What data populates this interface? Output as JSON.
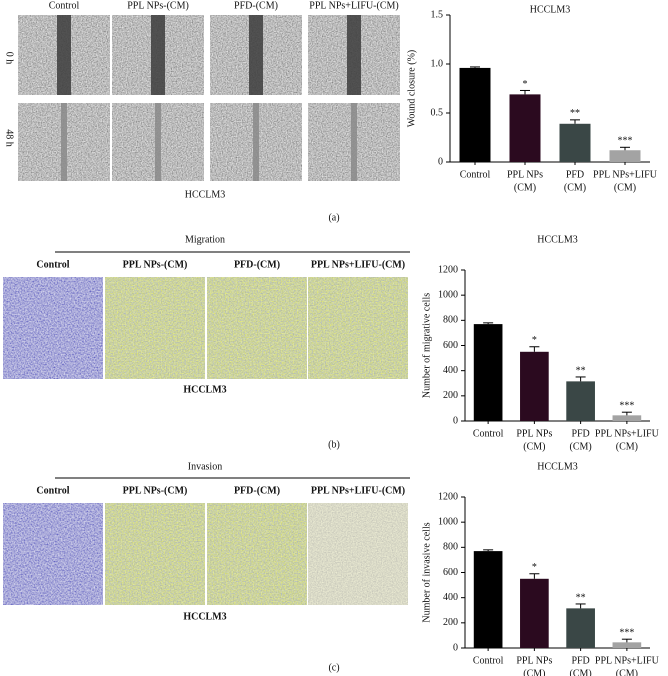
{
  "panel_a": {
    "columns": [
      "Control",
      "PPL NPs-(CM)",
      "PFD-(CM)",
      "PPL NPs+LIFU-(CM)"
    ],
    "rows": [
      "0 h",
      "48 h"
    ],
    "cell_line": "HCCLM3",
    "label": "(a)"
  },
  "panel_b": {
    "heading": "Migration",
    "columns": [
      "Control",
      "PPL NPs-(CM)",
      "PFD-(CM)",
      "PPL NPs+LIFU-(CM)"
    ],
    "cell_line": "HCCLM3",
    "label": "(b)"
  },
  "panel_c": {
    "heading": "Invasion",
    "columns": [
      "Control",
      "PPL NPs-(CM)",
      "PFD-(CM)",
      "PPL NPs+LIFU-(CM)"
    ],
    "cell_line": "HCCLM3",
    "label": "(c)"
  },
  "chart_data": [
    {
      "type": "bar",
      "title": "HCCLM3",
      "ylabel": "Wound closure (%)",
      "categories": [
        [
          "Control"
        ],
        [
          "PPL NPs",
          "(CM)"
        ],
        [
          "PFD",
          "(CM)"
        ],
        [
          "PPL NPs+LIFU",
          "(CM)"
        ]
      ],
      "values": [
        0.96,
        0.69,
        0.39,
        0.12
      ],
      "errors": [
        0.01,
        0.04,
        0.04,
        0.03
      ],
      "annotations": [
        null,
        "*",
        "**",
        "***"
      ],
      "colors": [
        "#000000",
        "#2b0a1f",
        "#3a4746",
        "#a3a3a3"
      ],
      "ylim": [
        0,
        1.5
      ],
      "yticks": [
        0,
        0.5,
        {
          "value": 1,
          "label": "1.0"
        },
        1.5
      ]
    },
    {
      "type": "bar",
      "title": "HCCLM3",
      "ylabel": "Number of migrative cells",
      "categories": [
        [
          "Control"
        ],
        [
          "PPL NPs",
          "(CM)"
        ],
        [
          "PFD",
          "(CM)"
        ],
        [
          "PPL NPs+LIFU",
          "(CM)"
        ]
      ],
      "values": [
        770,
        550,
        315,
        45
      ],
      "errors": [
        10,
        40,
        35,
        25
      ],
      "annotations": [
        null,
        "*",
        "**",
        "***"
      ],
      "colors": [
        "#000000",
        "#2b0a1f",
        "#3a4746",
        "#a3a3a3"
      ],
      "ylim": [
        0,
        1200
      ],
      "yticks": [
        0,
        200,
        400,
        600,
        800,
        1000,
        1200
      ]
    },
    {
      "type": "bar",
      "title": "HCCLM3",
      "ylabel": "Number of invasive cells",
      "categories": [
        [
          "Control"
        ],
        [
          "PPL NPs",
          "(CM)"
        ],
        [
          "PFD",
          "(CM)"
        ],
        [
          "PPL NPs+LIFU",
          "(CM)"
        ]
      ],
      "values": [
        770,
        550,
        315,
        45
      ],
      "errors": [
        10,
        40,
        35,
        25
      ],
      "annotations": [
        null,
        "*",
        "**",
        "***"
      ],
      "colors": [
        "#000000",
        "#2b0a1f",
        "#3a4746",
        "#a3a3a3"
      ],
      "ylim": [
        0,
        1200
      ],
      "yticks": [
        0,
        200,
        400,
        600,
        800,
        1000,
        1200
      ]
    }
  ]
}
